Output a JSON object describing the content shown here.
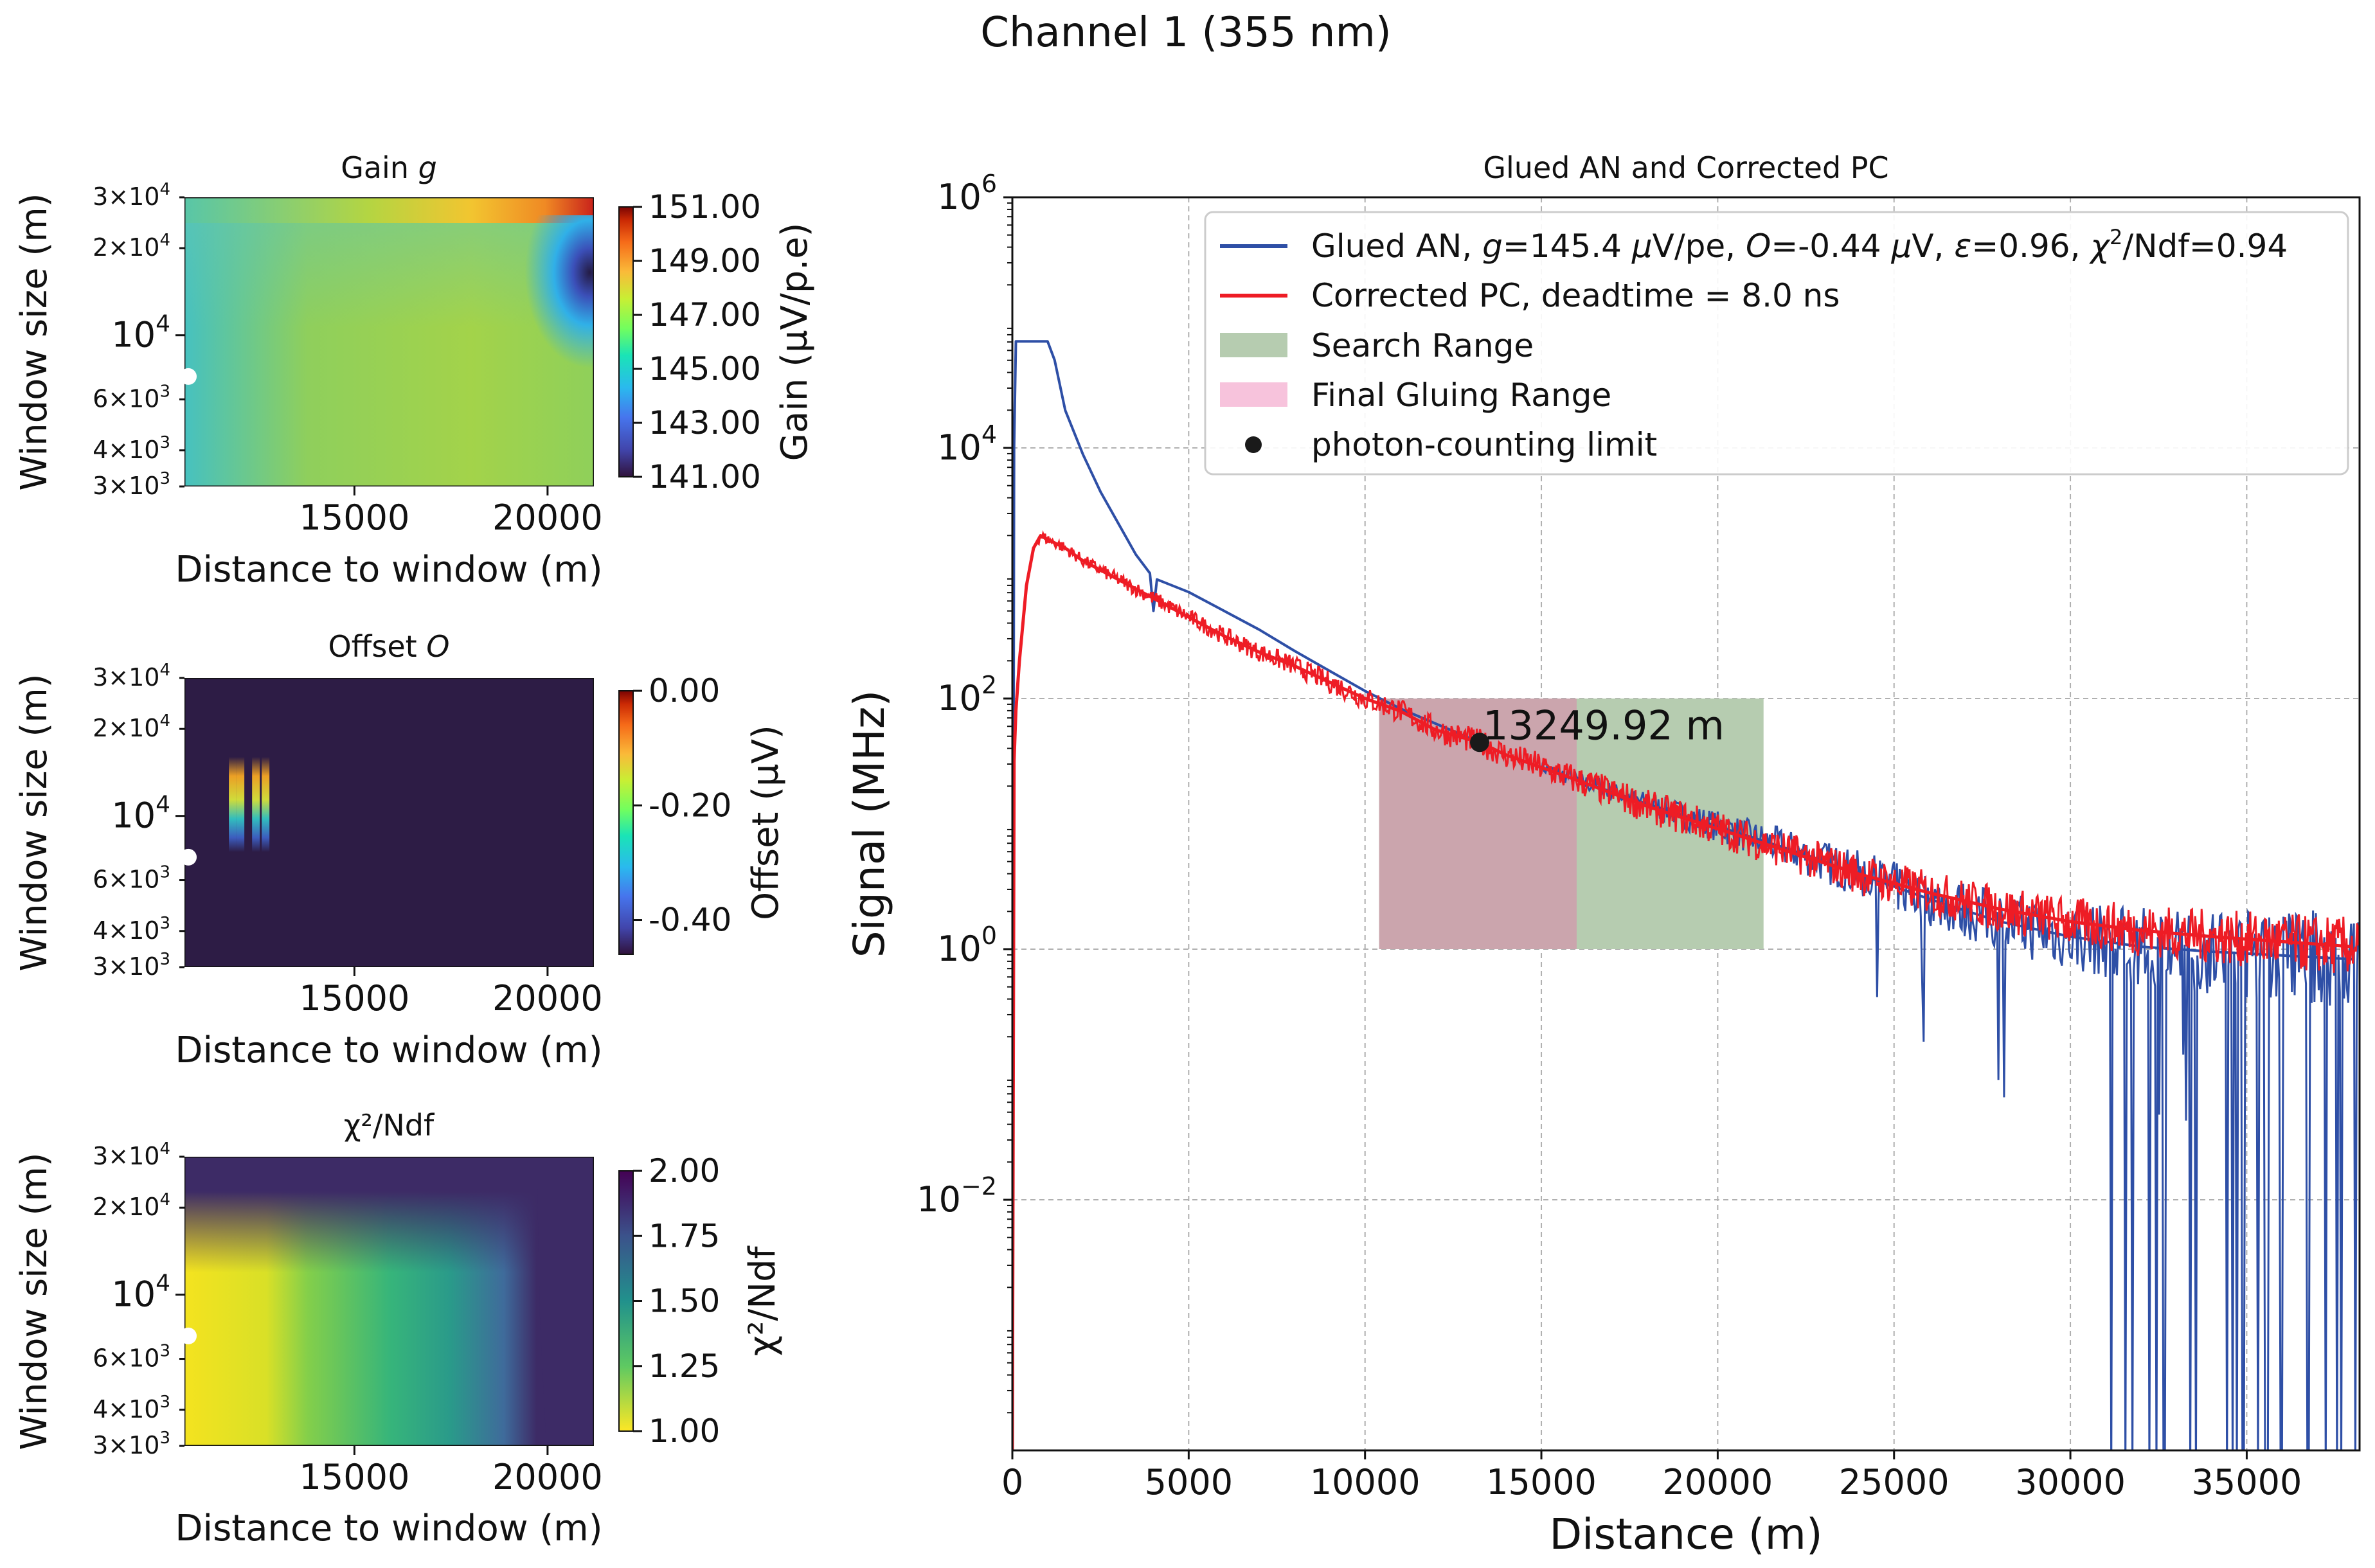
{
  "figure": {
    "title": "Channel 1 (355 nm)"
  },
  "colors": {
    "glued_an": "#2e4fa6",
    "corrected_pc": "#ee1c25",
    "search_range": "#b6ccb0",
    "final_gluing_range": "#cba5ad",
    "marker": "#1a1a1a",
    "grid": "#b0b0b0",
    "offset_background": "#2d1c45",
    "chi2_background": "#3d2b66"
  },
  "chart_data": [
    {
      "id": "gain",
      "type": "heatmap",
      "title_text": "Gain ",
      "title_symbol": "g",
      "xlabel": "Distance to window (m)",
      "ylabel": "Window size (m)",
      "xlim": [
        10600,
        21200
      ],
      "ylim": [
        3000,
        30000
      ],
      "yscale": "log",
      "x_ticks": [
        "15000",
        "20000"
      ],
      "x_tick_values": [
        15000,
        20000
      ],
      "y_ticks": [
        {
          "m": "3",
          "e": "3",
          "v": 3000
        },
        {
          "m": "4",
          "e": "3",
          "v": 4000
        },
        {
          "m": "6",
          "e": "3",
          "v": 6000
        },
        {
          "m": "",
          "e": "4",
          "v": 10000
        },
        {
          "m": "2",
          "e": "4",
          "v": 20000
        },
        {
          "m": "3",
          "e": "4",
          "v": 30000
        }
      ],
      "colorbar": {
        "label": "Gain (µV/p.e)",
        "min": 141.0,
        "max": 151.0,
        "ticks": [
          "151.00",
          "149.00",
          "147.00",
          "145.00",
          "143.00",
          "141.00"
        ],
        "colormap": "turbo"
      },
      "marker": {
        "x": 10700,
        "y": 7200
      },
      "description_values": {
        "dominant_value": 145.8,
        "top_right_high": 151.0,
        "right_low": 141.2
      }
    },
    {
      "id": "offset",
      "type": "heatmap",
      "title_text": "Offset ",
      "title_symbol": "O",
      "xlabel": "Distance to window (m)",
      "ylabel": "Window size (m)",
      "xlim": [
        10600,
        21200
      ],
      "ylim": [
        3000,
        30000
      ],
      "yscale": "log",
      "x_ticks": [
        "15000",
        "20000"
      ],
      "x_tick_values": [
        15000,
        20000
      ],
      "y_ticks": [
        {
          "m": "3",
          "e": "3",
          "v": 3000
        },
        {
          "m": "4",
          "e": "3",
          "v": 4000
        },
        {
          "m": "6",
          "e": "3",
          "v": 6000
        },
        {
          "m": "",
          "e": "4",
          "v": 10000
        },
        {
          "m": "2",
          "e": "4",
          "v": 20000
        },
        {
          "m": "3",
          "e": "4",
          "v": 30000
        }
      ],
      "colorbar": {
        "label": "Offset (µV)",
        "min": -0.46,
        "max": 0.0,
        "ticks": [
          "0.00",
          "-0.20",
          "-0.40"
        ],
        "tick_values": [
          0.0,
          -0.2,
          -0.4
        ],
        "colormap": "turbo"
      },
      "marker": {
        "x": 10700,
        "y": 7200
      },
      "streaks": [
        {
          "x": 11850,
          "y_min": 7500,
          "y_max": 16000
        },
        {
          "x": 12050,
          "y_min": 7500,
          "y_max": 16000
        },
        {
          "x": 12450,
          "y_min": 7500,
          "y_max": 16000
        },
        {
          "x": 12700,
          "y_min": 7500,
          "y_max": 16000
        }
      ]
    },
    {
      "id": "chi2",
      "type": "heatmap",
      "title_text": "χ²/Ndf",
      "xlabel": "Distance to window (m)",
      "ylabel": "Window size (m)",
      "xlim": [
        10600,
        21200
      ],
      "ylim": [
        3000,
        30000
      ],
      "yscale": "log",
      "x_ticks": [
        "15000",
        "20000"
      ],
      "x_tick_values": [
        15000,
        20000
      ],
      "y_ticks": [
        {
          "m": "3",
          "e": "3",
          "v": 3000
        },
        {
          "m": "4",
          "e": "3",
          "v": 4000
        },
        {
          "m": "6",
          "e": "3",
          "v": 6000
        },
        {
          "m": "",
          "e": "4",
          "v": 10000
        },
        {
          "m": "2",
          "e": "4",
          "v": 20000
        },
        {
          "m": "3",
          "e": "4",
          "v": 30000
        }
      ],
      "colorbar": {
        "label": "χ²/Ndf",
        "min": 1.0,
        "max": 2.0,
        "ticks": [
          "2.00",
          "1.75",
          "1.50",
          "1.25",
          "1.00"
        ],
        "tick_values": [
          2.0,
          1.75,
          1.5,
          1.25,
          1.0
        ],
        "colormap": "viridis_r"
      },
      "marker": {
        "x": 10700,
        "y": 7200
      }
    },
    {
      "id": "signal",
      "type": "line",
      "title": "Glued AN and Corrected PC",
      "xlabel": "Distance (m)",
      "ylabel": "Signal (MHz)",
      "xlim": [
        0,
        38200
      ],
      "ylim_log10": [
        -4,
        6
      ],
      "yscale": "log",
      "x_ticks": [
        "0",
        "5000",
        "10000",
        "15000",
        "20000",
        "25000",
        "30000",
        "35000"
      ],
      "x_tick_values": [
        0,
        5000,
        10000,
        15000,
        20000,
        25000,
        30000,
        35000
      ],
      "y_ticks": [
        {
          "base": "10",
          "exp": "6",
          "v": 6
        },
        {
          "base": "10",
          "exp": "4",
          "v": 4
        },
        {
          "base": "10",
          "exp": "2",
          "v": 2
        },
        {
          "base": "10",
          "exp": "0",
          "v": 0
        },
        {
          "base": "10",
          "exp": "−2",
          "v": -2
        }
      ],
      "series": [
        {
          "name": "Glued AN",
          "legend_text": "Glued AN, g=145.4 µV/pe, O=-0.44 µV, ε=0.96, χ²/Ndf=0.94",
          "legend_parts": {
            "a": "Glued AN, ",
            "g": "g",
            "b": "=145.4 ",
            "mu1": "µ",
            "c": "V/pe, ",
            "o": "O",
            "d": "=-0.44 ",
            "mu2": "µ",
            "e": "V, ",
            "eps": "ε",
            "f": "=0.96, ",
            "chi": "χ",
            "two": "2",
            "h": "/Ndf=0.94"
          },
          "x": [
            0,
            50,
            100,
            1000,
            1200,
            1500,
            2000,
            2500,
            3000,
            3500,
            3900,
            4000,
            4100,
            5000,
            6000,
            7000,
            8000,
            9000,
            10000,
            11000,
            12000,
            13250,
            14000,
            16000,
            18000,
            20000,
            22000,
            24000,
            25000,
            26000,
            28000,
            30000,
            32000,
            34000,
            36000,
            38000
          ],
          "log10_y": [
            -4,
            4.0,
            4.85,
            4.85,
            4.7,
            4.3,
            3.95,
            3.65,
            3.4,
            3.15,
            3.0,
            2.7,
            2.95,
            2.85,
            2.7,
            2.55,
            2.38,
            2.22,
            2.06,
            1.92,
            1.8,
            1.65,
            1.55,
            1.35,
            1.16,
            0.98,
            0.8,
            0.6,
            0.5,
            0.4,
            0.22,
            0.1,
            0.02,
            -0.02,
            -0.05,
            -0.08
          ]
        },
        {
          "name": "Corrected PC",
          "legend_text": "Corrected PC, deadtime = 8.0 ns",
          "x": [
            0,
            50,
            100,
            200,
            400,
            600,
            800,
            1000,
            1500,
            2000,
            3000,
            4000,
            5000,
            6000,
            7000,
            8000,
            9000,
            10000,
            11000,
            12000,
            13250,
            14000,
            16000,
            18000,
            20000,
            22000,
            24000,
            26000,
            28000,
            30000,
            32000,
            34000,
            36000,
            38000
          ],
          "log10_y": [
            -4,
            1.5,
            1.9,
            2.3,
            2.9,
            3.2,
            3.3,
            3.27,
            3.2,
            3.1,
            2.95,
            2.8,
            2.65,
            2.5,
            2.37,
            2.26,
            2.13,
            2.0,
            1.9,
            1.75,
            1.65,
            1.55,
            1.35,
            1.14,
            0.96,
            0.78,
            0.6,
            0.45,
            0.32,
            0.22,
            0.15,
            0.1,
            0.06,
            0.02
          ]
        }
      ],
      "ranges": [
        {
          "name": "Search Range",
          "x_min": 10400,
          "x_max": 21300,
          "log10_y_min": 0,
          "log10_y_max": 2
        },
        {
          "name": "Final Gluing Range",
          "x_min": 10400,
          "x_max": 16000,
          "log10_y_min": 0,
          "log10_y_max": 2
        }
      ],
      "photon_counting_limit": {
        "x": 13249.92,
        "log10_y": 1.65,
        "label": "13249.92 m"
      },
      "legend": {
        "position": "top-right",
        "entries": [
          "Glued AN, g=145.4 µV/pe, O=-0.44 µV, ε=0.96, χ²/Ndf=0.94",
          "Corrected PC, deadtime = 8.0 ns",
          "Search Range",
          "Final Gluing Range",
          "photon-counting limit"
        ]
      }
    }
  ]
}
